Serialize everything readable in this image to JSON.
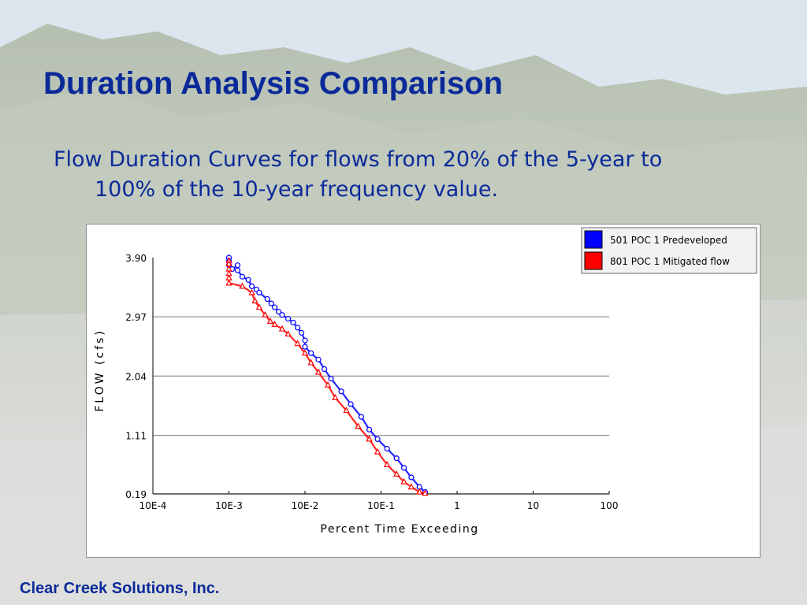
{
  "slide": {
    "title": "Duration Analysis Comparison",
    "subtitle_line1": "Flow Duration Curves for flows from 20% of the 5-year to",
    "subtitle_line2": "100% of the 10-year frequency value.",
    "footer": "Clear Creek Solutions, Inc.",
    "title_color": "#0b2a99"
  },
  "chart_data": {
    "type": "scatter",
    "xscale": "log",
    "xlim": [
      0.0001,
      100
    ],
    "ylim": [
      0.19,
      3.9
    ],
    "xlabel": "Percent Time Exceeding",
    "ylabel": "FLOW (cfs)",
    "grid": "horizontal",
    "legend_position": "top-right",
    "x_ticks": [
      {
        "value": 0.0001,
        "label": "10E-4"
      },
      {
        "value": 0.001,
        "label": "10E-3"
      },
      {
        "value": 0.01,
        "label": "10E-2"
      },
      {
        "value": 0.1,
        "label": "10E-1"
      },
      {
        "value": 1,
        "label": "1"
      },
      {
        "value": 10,
        "label": "10"
      },
      {
        "value": 100,
        "label": "100"
      }
    ],
    "y_ticks": [
      {
        "value": 3.9,
        "label": "3.90"
      },
      {
        "value": 2.97,
        "label": "2.97"
      },
      {
        "value": 2.04,
        "label": "2.04"
      },
      {
        "value": 1.11,
        "label": "1.11"
      },
      {
        "value": 0.19,
        "label": "0.19"
      }
    ],
    "series": [
      {
        "name": "501 POC 1 Predeveloped",
        "color": "#0000ff",
        "marker": "circle",
        "points": [
          [
            0.001,
            3.9
          ],
          [
            0.001,
            3.85
          ],
          [
            0.001,
            3.78
          ],
          [
            0.0011,
            3.72
          ],
          [
            0.0013,
            3.78
          ],
          [
            0.0013,
            3.7
          ],
          [
            0.0015,
            3.6
          ],
          [
            0.0018,
            3.55
          ],
          [
            0.002,
            3.45
          ],
          [
            0.0023,
            3.4
          ],
          [
            0.0025,
            3.35
          ],
          [
            0.0032,
            3.25
          ],
          [
            0.0036,
            3.18
          ],
          [
            0.004,
            3.12
          ],
          [
            0.0045,
            3.05
          ],
          [
            0.005,
            3.0
          ],
          [
            0.006,
            2.94
          ],
          [
            0.007,
            2.88
          ],
          [
            0.008,
            2.8
          ],
          [
            0.009,
            2.72
          ],
          [
            0.01,
            2.6
          ],
          [
            0.01,
            2.5
          ],
          [
            0.012,
            2.4
          ],
          [
            0.015,
            2.3
          ],
          [
            0.018,
            2.15
          ],
          [
            0.022,
            2.0
          ],
          [
            0.03,
            1.8
          ],
          [
            0.04,
            1.6
          ],
          [
            0.055,
            1.4
          ],
          [
            0.07,
            1.2
          ],
          [
            0.09,
            1.05
          ],
          [
            0.12,
            0.9
          ],
          [
            0.16,
            0.75
          ],
          [
            0.2,
            0.6
          ],
          [
            0.25,
            0.45
          ],
          [
            0.32,
            0.3
          ],
          [
            0.38,
            0.22
          ]
        ]
      },
      {
        "name": "801 POC 1 Mitigated flow",
        "color": "#ff0000",
        "marker": "triangle",
        "points": [
          [
            0.001,
            3.85
          ],
          [
            0.001,
            3.8
          ],
          [
            0.001,
            3.72
          ],
          [
            0.001,
            3.65
          ],
          [
            0.001,
            3.58
          ],
          [
            0.001,
            3.5
          ],
          [
            0.0015,
            3.45
          ],
          [
            0.002,
            3.35
          ],
          [
            0.0022,
            3.22
          ],
          [
            0.0025,
            3.12
          ],
          [
            0.003,
            3.0
          ],
          [
            0.0035,
            2.9
          ],
          [
            0.004,
            2.85
          ],
          [
            0.005,
            2.78
          ],
          [
            0.006,
            2.7
          ],
          [
            0.008,
            2.55
          ],
          [
            0.01,
            2.4
          ],
          [
            0.012,
            2.25
          ],
          [
            0.015,
            2.1
          ],
          [
            0.02,
            1.9
          ],
          [
            0.025,
            1.7
          ],
          [
            0.035,
            1.5
          ],
          [
            0.05,
            1.25
          ],
          [
            0.07,
            1.05
          ],
          [
            0.09,
            0.85
          ],
          [
            0.12,
            0.65
          ],
          [
            0.16,
            0.5
          ],
          [
            0.2,
            0.38
          ],
          [
            0.25,
            0.3
          ],
          [
            0.32,
            0.22
          ],
          [
            0.38,
            0.2
          ]
        ]
      }
    ]
  }
}
